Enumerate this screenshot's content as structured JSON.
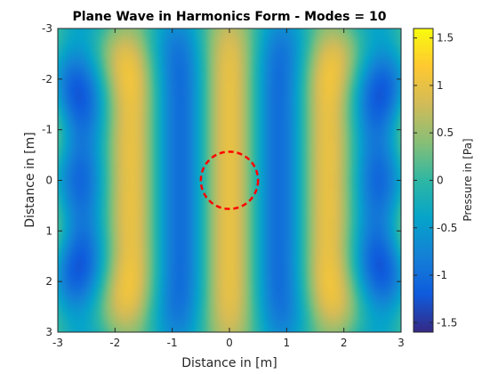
{
  "chart_data": {
    "type": "heatmap",
    "title": "Plane Wave in Harmonics Form - Modes = 10",
    "xlabel": "Distance in [m]",
    "ylabel": "Distance in [m]",
    "colorbar_label": "Pressure in [Pa]",
    "xlim": [
      -3,
      3
    ],
    "ylim": [
      -3,
      3
    ],
    "y_direction": "reversed",
    "clim": [
      -1.6,
      1.6
    ],
    "colormap": "parula",
    "x_ticks": [
      -3,
      -2,
      -1,
      0,
      1,
      2,
      3
    ],
    "y_ticks": [
      -3,
      -2,
      -1,
      0,
      1,
      2,
      3
    ],
    "colorbar_ticks": [
      -1.5,
      -1,
      -0.5,
      0,
      0.5,
      1,
      1.5
    ],
    "field": {
      "description": "Real part of a plane wave travelling along x reconstructed from cylindrical harmonics",
      "wavenumber": 3.6,
      "modes": 10
    },
    "overlay_circle": {
      "center": [
        0,
        0
      ],
      "radius": 0.5,
      "color": "#ff0000",
      "style": "dashed"
    }
  },
  "colors": {
    "axis": "#262626",
    "circle": "#ff0000",
    "parula_stops": [
      "#352a87",
      "#0f5cdd",
      "#1481d6",
      "#06a4ca",
      "#2eb7a4",
      "#87bf77",
      "#d1bb59",
      "#fec832",
      "#f9fb0e"
    ]
  }
}
